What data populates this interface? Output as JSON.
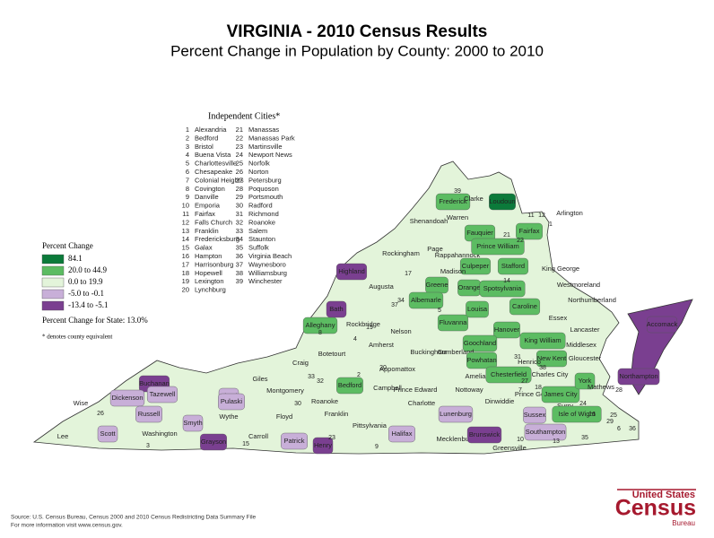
{
  "title": "VIRGINIA - 2010 Census Results",
  "subtitle": "Percent Change in Population by County:  2000 to 2010",
  "independent_cities": {
    "title": "Independent Cities*",
    "items": [
      {
        "n": 1,
        "name": "Alexandria"
      },
      {
        "n": 2,
        "name": "Bedford"
      },
      {
        "n": 3,
        "name": "Bristol"
      },
      {
        "n": 4,
        "name": "Buena Vista"
      },
      {
        "n": 5,
        "name": "Charlottesville"
      },
      {
        "n": 6,
        "name": "Chesapeake"
      },
      {
        "n": 7,
        "name": "Colonial Heights"
      },
      {
        "n": 8,
        "name": "Covington"
      },
      {
        "n": 9,
        "name": "Danville"
      },
      {
        "n": 10,
        "name": "Emporia"
      },
      {
        "n": 11,
        "name": "Fairfax"
      },
      {
        "n": 12,
        "name": "Falls Church"
      },
      {
        "n": 13,
        "name": "Franklin"
      },
      {
        "n": 14,
        "name": "Fredericksburg"
      },
      {
        "n": 15,
        "name": "Galax"
      },
      {
        "n": 16,
        "name": "Hampton"
      },
      {
        "n": 17,
        "name": "Harrisonburg"
      },
      {
        "n": 18,
        "name": "Hopewell"
      },
      {
        "n": 19,
        "name": "Lexington"
      },
      {
        "n": 20,
        "name": "Lynchburg"
      },
      {
        "n": 21,
        "name": "Manassas"
      },
      {
        "n": 22,
        "name": "Manassas Park"
      },
      {
        "n": 23,
        "name": "Martinsville"
      },
      {
        "n": 24,
        "name": "Newport News"
      },
      {
        "n": 25,
        "name": "Norfolk"
      },
      {
        "n": 26,
        "name": "Norton"
      },
      {
        "n": 27,
        "name": "Petersburg"
      },
      {
        "n": 28,
        "name": "Poquoson"
      },
      {
        "n": 29,
        "name": "Portsmouth"
      },
      {
        "n": 30,
        "name": "Radford"
      },
      {
        "n": 31,
        "name": "Richmond"
      },
      {
        "n": 32,
        "name": "Roanoke"
      },
      {
        "n": 33,
        "name": "Salem"
      },
      {
        "n": 34,
        "name": "Staunton"
      },
      {
        "n": 35,
        "name": "Suffolk"
      },
      {
        "n": 36,
        "name": "Virginia Beach"
      },
      {
        "n": 37,
        "name": "Waynesboro"
      },
      {
        "n": 38,
        "name": "Williamsburg"
      },
      {
        "n": 39,
        "name": "Winchester"
      }
    ]
  },
  "legend": {
    "title": "Percent Change",
    "classes": [
      {
        "label": "84.1",
        "color": "#0b7a3a"
      },
      {
        "label": "20.0 to 44.9",
        "color": "#5cbc62"
      },
      {
        "label": "0.0 to 19.9",
        "color": "#e3f4da"
      },
      {
        "label": "-5.0 to -0.1",
        "color": "#c8afd8"
      },
      {
        "label": "-13.4 to -5.1",
        "color": "#7a3f90"
      }
    ]
  },
  "state_change": "Percent Change for State:  13.0%",
  "footnote": "* denotes county equivalent",
  "counties": [
    {
      "name": "Frederick",
      "class": 1
    },
    {
      "name": "Clarke",
      "class": 2
    },
    {
      "name": "Loudoun",
      "class": 0
    },
    {
      "name": "Warren",
      "class": 2
    },
    {
      "name": "Shenandoah",
      "class": 2
    },
    {
      "name": "Fauquier",
      "class": 1
    },
    {
      "name": "Fairfax",
      "class": 1
    },
    {
      "name": "Arlington",
      "class": 2
    },
    {
      "name": "Page",
      "class": 2
    },
    {
      "name": "Rappahannock",
      "class": 2
    },
    {
      "name": "Prince William",
      "class": 1
    },
    {
      "name": "Rockingham",
      "class": 2
    },
    {
      "name": "Culpeper",
      "class": 1
    },
    {
      "name": "Stafford",
      "class": 1
    },
    {
      "name": "King George",
      "class": 2
    },
    {
      "name": "Madison",
      "class": 2
    },
    {
      "name": "Highland",
      "class": 4
    },
    {
      "name": "Augusta",
      "class": 2
    },
    {
      "name": "Orange",
      "class": 1
    },
    {
      "name": "Spotsylvania",
      "class": 1
    },
    {
      "name": "Westmoreland",
      "class": 2
    },
    {
      "name": "Greene",
      "class": 1
    },
    {
      "name": "Albemarle",
      "class": 1
    },
    {
      "name": "Bath",
      "class": 4
    },
    {
      "name": "Louisa",
      "class": 1
    },
    {
      "name": "Caroline",
      "class": 1
    },
    {
      "name": "Northumberland",
      "class": 2
    },
    {
      "name": "Alleghany",
      "class": 1
    },
    {
      "name": "Rockbridge",
      "class": 2
    },
    {
      "name": "Fluvanna",
      "class": 1
    },
    {
      "name": "Nelson",
      "class": 2
    },
    {
      "name": "Hanover",
      "class": 1
    },
    {
      "name": "Essex",
      "class": 2
    },
    {
      "name": "Lancaster",
      "class": 2
    },
    {
      "name": "Accomack",
      "class": 4
    },
    {
      "name": "Goochland",
      "class": 1
    },
    {
      "name": "King William",
      "class": 1
    },
    {
      "name": "Middlesex",
      "class": 2
    },
    {
      "name": "Amherst",
      "class": 2
    },
    {
      "name": "Buckingham",
      "class": 2
    },
    {
      "name": "Cumberland",
      "class": 2
    },
    {
      "name": "Powhatan",
      "class": 1
    },
    {
      "name": "New Kent",
      "class": 1
    },
    {
      "name": "Gloucester",
      "class": 2
    },
    {
      "name": "Henrico",
      "class": 2
    },
    {
      "name": "Botetourt",
      "class": 2
    },
    {
      "name": "Craig",
      "class": 2
    },
    {
      "name": "Chesterfield",
      "class": 1
    },
    {
      "name": "Charles City",
      "class": 2
    },
    {
      "name": "Appomattox",
      "class": 2
    },
    {
      "name": "Amelia",
      "class": 2
    },
    {
      "name": "Northampton",
      "class": 4
    },
    {
      "name": "Bedford",
      "class": 1
    },
    {
      "name": "Buchanan",
      "class": 4
    },
    {
      "name": "Giles",
      "class": 2
    },
    {
      "name": "Dickenson",
      "class": 3
    },
    {
      "name": "Tazewell",
      "class": 3
    },
    {
      "name": "Bland",
      "class": 3
    },
    {
      "name": "Montgomery",
      "class": 2
    },
    {
      "name": "Roanoke",
      "class": 2
    },
    {
      "name": "Prince Edward",
      "class": 2
    },
    {
      "name": "Nottoway",
      "class": 2
    },
    {
      "name": "Prince George",
      "class": 2
    },
    {
      "name": "James City",
      "class": 1
    },
    {
      "name": "York",
      "class": 1
    },
    {
      "name": "Mathews",
      "class": 2
    },
    {
      "name": "Campbell",
      "class": 2
    },
    {
      "name": "Dinwiddie",
      "class": 2
    },
    {
      "name": "Wise",
      "class": 2
    },
    {
      "name": "Russell",
      "class": 3
    },
    {
      "name": "Pulaski",
      "class": 3
    },
    {
      "name": "Surry",
      "class": 2
    },
    {
      "name": "Isle of Wight",
      "class": 1
    },
    {
      "name": "Franklin",
      "class": 2
    },
    {
      "name": "Charlotte",
      "class": 2
    },
    {
      "name": "Lunenburg",
      "class": 3
    },
    {
      "name": "Sussex",
      "class": 3
    },
    {
      "name": "Floyd",
      "class": 2
    },
    {
      "name": "Smyth",
      "class": 3
    },
    {
      "name": "Wythe",
      "class": 2
    },
    {
      "name": "Pittsylvania",
      "class": 2
    },
    {
      "name": "Southampton",
      "class": 3
    },
    {
      "name": "Lee",
      "class": 2
    },
    {
      "name": "Scott",
      "class": 3
    },
    {
      "name": "Washington",
      "class": 2
    },
    {
      "name": "Carroll",
      "class": 2
    },
    {
      "name": "Patrick",
      "class": 3
    },
    {
      "name": "Halifax",
      "class": 3
    },
    {
      "name": "Mecklenburg",
      "class": 2
    },
    {
      "name": "Brunswick",
      "class": 4
    },
    {
      "name": "Grayson",
      "class": 4
    },
    {
      "name": "Henry",
      "class": 4
    },
    {
      "name": "Greensville",
      "class": 2
    }
  ],
  "source": [
    "Source:  U.S. Census Bureau, Census 2000 and 2010 Census Redistricting Data Summary File",
    "For more information visit www.census.gov."
  ],
  "logo": {
    "top": "United States",
    "main": "Census",
    "bottom": "Bureau"
  }
}
